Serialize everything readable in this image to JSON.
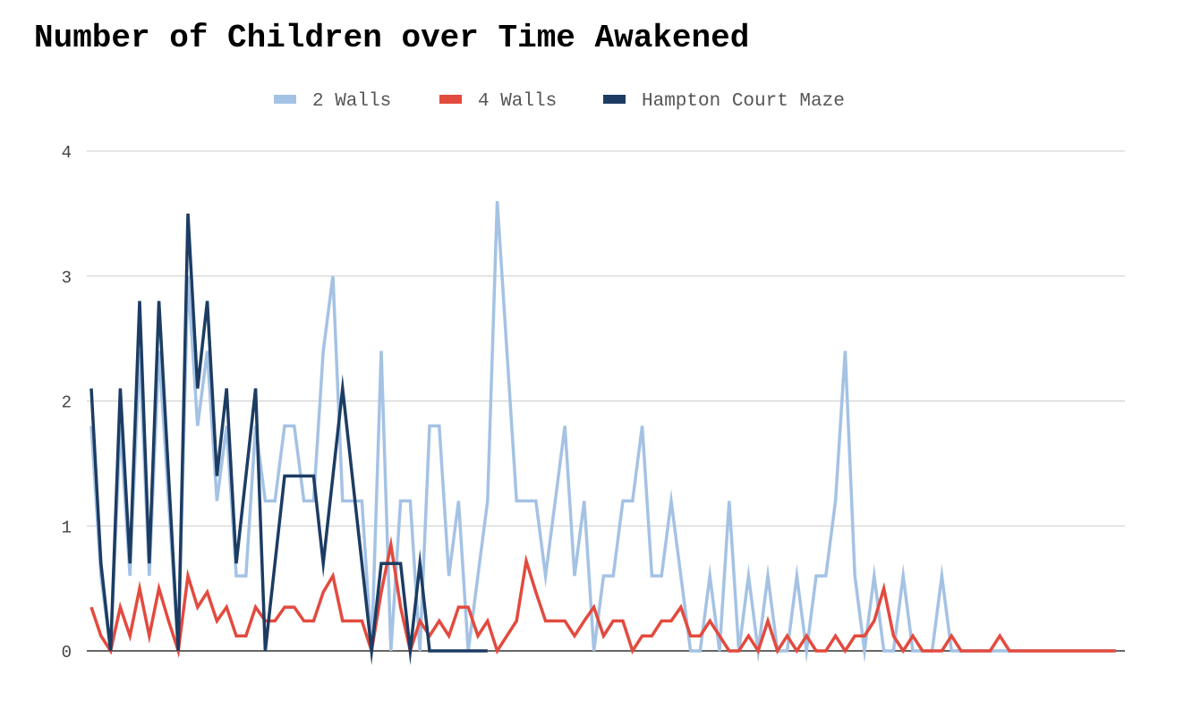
{
  "chart_data": {
    "type": "line",
    "title": "Number of Children over Time Awakened",
    "xlabel": "",
    "ylabel": "",
    "ylim": [
      0,
      4
    ],
    "yticks": [
      "0",
      "1",
      "2",
      "3",
      "4"
    ],
    "grid": true,
    "legend_position": "top",
    "series": [
      {
        "name": "2 Walls",
        "color": "#a4c2e4",
        "values": [
          1.8,
          0.6,
          0,
          1.8,
          0.6,
          2.4,
          0.6,
          2.4,
          1.2,
          0,
          3,
          1.8,
          2.4,
          1.2,
          1.8,
          0.6,
          0.6,
          1.8,
          1.2,
          1.2,
          1.8,
          1.8,
          1.2,
          1.2,
          2.4,
          3,
          1.2,
          1.2,
          1.2,
          0,
          2.4,
          0,
          1.2,
          1.2,
          0,
          1.8,
          1.8,
          0.6,
          1.2,
          0,
          0.6,
          1.2,
          3.6,
          2.4,
          1.2,
          1.2,
          1.2,
          0.6,
          1.2,
          1.8,
          0.6,
          1.2,
          0,
          0.6,
          0.6,
          1.2,
          1.2,
          1.8,
          0.6,
          0.6,
          1.2,
          0.6,
          0,
          0,
          0.6,
          0,
          1.2,
          0,
          0.6,
          0,
          0.6,
          0,
          0,
          0.6,
          0,
          0.6,
          0.6,
          1.2,
          2.4,
          0.6,
          0,
          0.6,
          0,
          0,
          0.6,
          0,
          0,
          0,
          0.6,
          0,
          0,
          0,
          0,
          0,
          0,
          0,
          0,
          0,
          0,
          0,
          0,
          0,
          0,
          0,
          0,
          0,
          0
        ]
      },
      {
        "name": "4 Walls",
        "color": "#e34a3e",
        "values": [
          0.35,
          0.12,
          0,
          0.35,
          0.12,
          0.5,
          0.12,
          0.5,
          0.24,
          0,
          0.6,
          0.35,
          0.47,
          0.24,
          0.35,
          0.12,
          0.12,
          0.35,
          0.24,
          0.24,
          0.35,
          0.35,
          0.24,
          0.24,
          0.47,
          0.6,
          0.24,
          0.24,
          0.24,
          0,
          0.47,
          0.85,
          0.35,
          0,
          0.24,
          0.12,
          0.24,
          0.12,
          0.35,
          0.35,
          0.12,
          0.24,
          0,
          0.12,
          0.24,
          0.72,
          0.47,
          0.24,
          0.24,
          0.24,
          0.12,
          0.24,
          0.35,
          0.12,
          0.24,
          0.24,
          0,
          0.12,
          0.12,
          0.24,
          0.24,
          0.35,
          0.12,
          0.12,
          0.24,
          0.12,
          0,
          0,
          0.12,
          0,
          0.24,
          0,
          0.12,
          0,
          0.12,
          0,
          0,
          0.12,
          0,
          0.12,
          0.12,
          0.24,
          0.5,
          0.12,
          0,
          0.12,
          0,
          0,
          0,
          0.12,
          0,
          0,
          0,
          0,
          0.12,
          0,
          0,
          0,
          0,
          0,
          0,
          0,
          0,
          0,
          0,
          0,
          0
        ]
      },
      {
        "name": "Hampton Court Maze",
        "color": "#1c3c63",
        "values": [
          2.1,
          0.7,
          0,
          2.1,
          0.7,
          2.8,
          0.7,
          2.8,
          1.4,
          0,
          3.5,
          2.1,
          2.8,
          1.4,
          2.1,
          0.7,
          1.4,
          2.1,
          0,
          0.7,
          1.4,
          1.4,
          1.4,
          1.4,
          0.7,
          1.4,
          2.1,
          1.4,
          0.7,
          0,
          0.7,
          0.7,
          0.7,
          0,
          0.7,
          0,
          0,
          0,
          0,
          0,
          0,
          0
        ]
      }
    ]
  }
}
